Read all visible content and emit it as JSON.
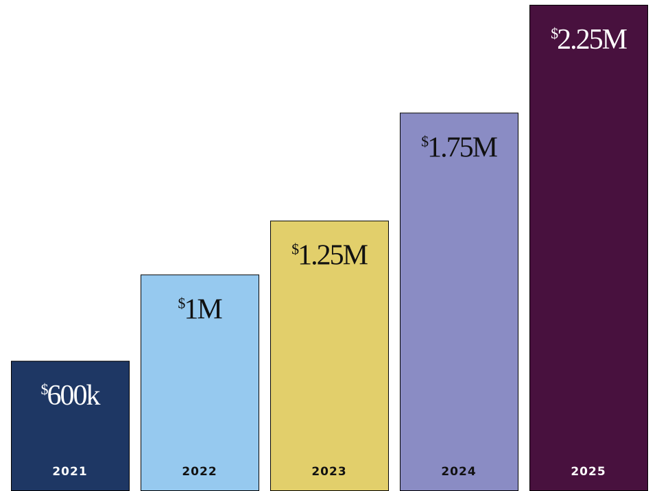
{
  "chart_data": {
    "type": "bar",
    "categories": [
      "2021",
      "2022",
      "2023",
      "2024",
      "2025"
    ],
    "values": [
      600000,
      1000000,
      1250000,
      1750000,
      2250000
    ],
    "value_labels": [
      "$600k",
      "$1M",
      "$1.25M",
      "$1.75M",
      "$2.25M"
    ],
    "colors": [
      "#1e3764",
      "#96c9ef",
      "#e2cf6b",
      "#8a8cc4",
      "#48113e"
    ]
  }
}
